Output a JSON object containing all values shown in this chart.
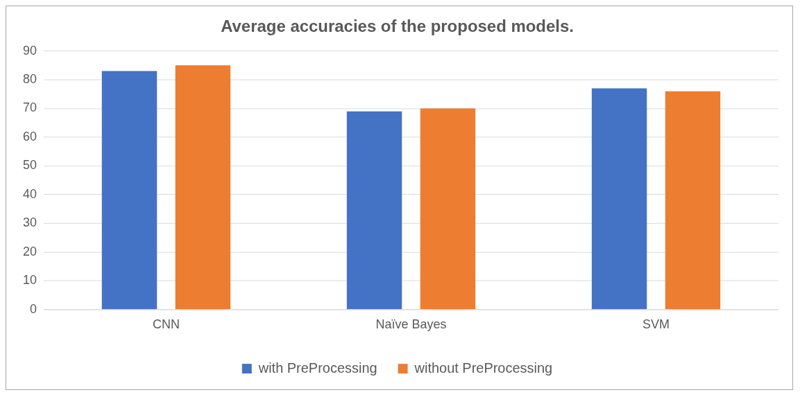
{
  "chart_data": {
    "type": "bar",
    "title": "Average accuracies of the proposed models.",
    "categories": [
      "CNN",
      "Naïve Bayes",
      "SVM"
    ],
    "series": [
      {
        "name": "with PreProcessing",
        "color": "#4472c4",
        "values": [
          83,
          69,
          77
        ]
      },
      {
        "name": "without PreProcessing",
        "color": "#ed7d31",
        "values": [
          85,
          70,
          76
        ]
      }
    ],
    "ylim": [
      0,
      90
    ],
    "yticks": [
      0,
      10,
      20,
      30,
      40,
      50,
      60,
      70,
      80,
      90
    ],
    "grid": "y",
    "legend": "bottom"
  }
}
